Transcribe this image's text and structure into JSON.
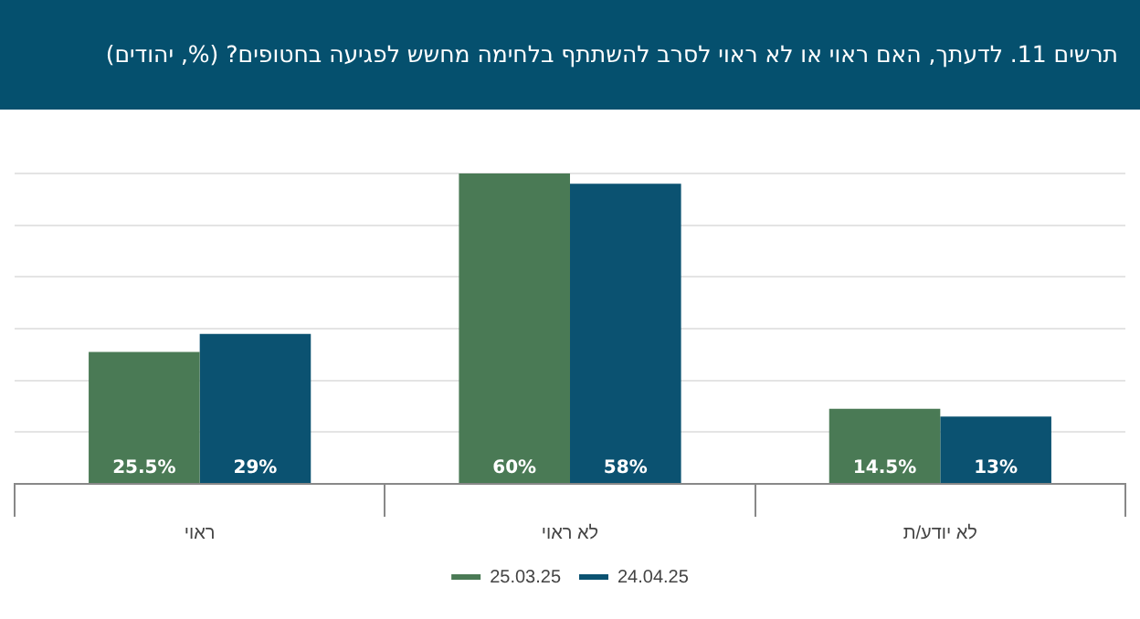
{
  "chart_data": {
    "type": "bar",
    "title": "תרשים 11. לדעתך, האם ראוי או לא ראוי לסרב להשתתף בלחימה מחשש לפגיעה בחטופים? (%, יהודים)",
    "categories": [
      "ראוי",
      "לא ראוי",
      "לא יודע/ת"
    ],
    "series": [
      {
        "name": "25.03.25",
        "color": "#4a7a55",
        "values": [
          25.5,
          60,
          14.5
        ],
        "value_labels": [
          "25.5%",
          "60%",
          "14.5%"
        ]
      },
      {
        "name": "24.04.25",
        "color": "#0b5271",
        "values": [
          29,
          58,
          13
        ],
        "value_labels": [
          "29%",
          "58%",
          "13%"
        ]
      }
    ],
    "ylim": [
      0,
      60
    ],
    "yticks": [
      0,
      10,
      20,
      30,
      40,
      50,
      60
    ],
    "tick_labels": "x",
    "grid": "y",
    "legend": "bottom"
  }
}
